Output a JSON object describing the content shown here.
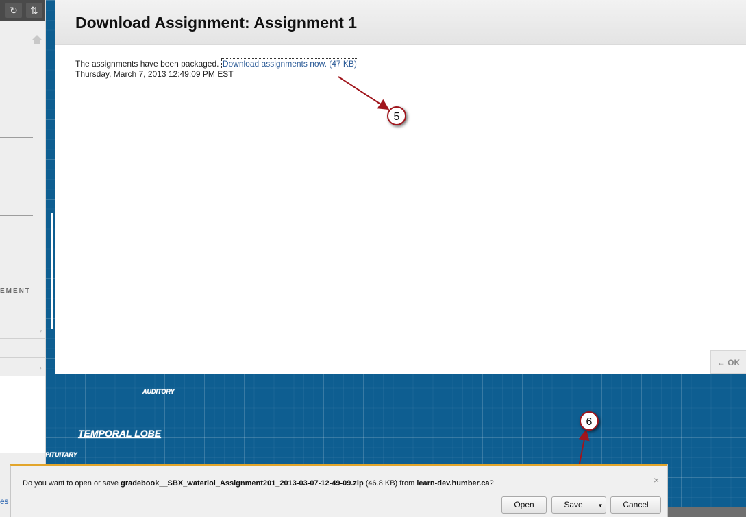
{
  "modal": {
    "title": "Download Assignment: Assignment 1",
    "packaged_text": "The assignments have been packaged.",
    "download_link": "Download assignments now. (47 KB)",
    "timestamp": "Thursday, March 7, 2013 12:49:09 PM EST",
    "ok_label": "← OK"
  },
  "sidebar": {
    "refresh_icon": "↻",
    "sort_icon": "⇅",
    "section_text": "EMENT",
    "partial_link": "es"
  },
  "background": {
    "labels": [
      "AUDITORY",
      "TEMPORAL LOBE",
      "PITUITARY"
    ]
  },
  "callouts": [
    "5",
    "6"
  ],
  "download_bar": {
    "prefix": "Do you want to open or save ",
    "filename": "gradebook__SBX_waterlol_Assignment201_2013-03-07-12-49-09.zip",
    "size": " (46.8 KB) from ",
    "host": "learn-dev.humber.ca",
    "suffix": "?",
    "open_label": "Open",
    "save_label": "Save",
    "cancel_label": "Cancel",
    "close_icon": "×"
  },
  "colors": {
    "accent": "#a0151c",
    "blueprint": "#0e5e91",
    "link": "#2b5b97"
  }
}
